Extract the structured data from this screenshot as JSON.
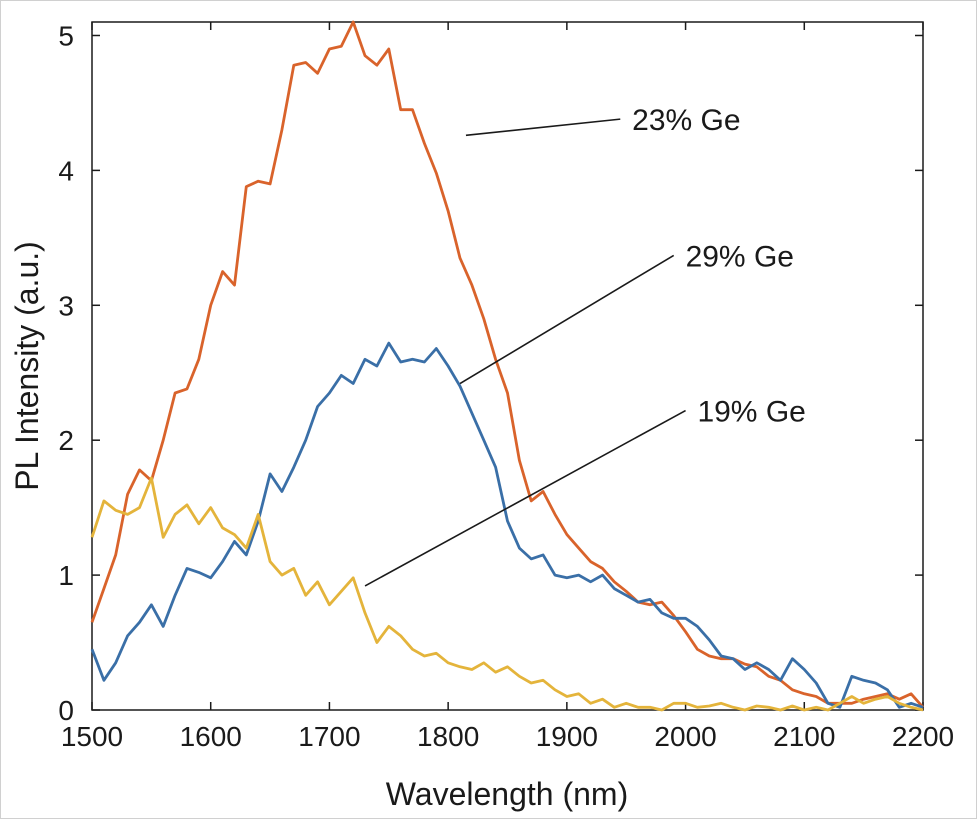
{
  "chart_data": {
    "type": "line",
    "title": "",
    "xlabel": "Wavelength (nm)",
    "ylabel": "PL Intensity (a.u.)",
    "xlim": [
      1500,
      2200
    ],
    "ylim": [
      0,
      5.1
    ],
    "xticks": [
      "1500",
      "1600",
      "1700",
      "1800",
      "1900",
      "2000",
      "2100",
      "2200"
    ],
    "yticks": [
      "0",
      "1",
      "2",
      "3",
      "4",
      "5"
    ],
    "grid": false,
    "legend": "none",
    "series": [
      {
        "name": "23% Ge",
        "color": "#d9632b",
        "x": [
          1500,
          1510,
          1520,
          1530,
          1540,
          1550,
          1560,
          1570,
          1580,
          1590,
          1600,
          1610,
          1620,
          1630,
          1640,
          1650,
          1660,
          1670,
          1680,
          1690,
          1700,
          1710,
          1720,
          1730,
          1740,
          1750,
          1760,
          1770,
          1780,
          1790,
          1800,
          1810,
          1820,
          1830,
          1840,
          1850,
          1860,
          1870,
          1880,
          1890,
          1900,
          1910,
          1920,
          1930,
          1940,
          1950,
          1960,
          1970,
          1980,
          1990,
          2000,
          2010,
          2020,
          2030,
          2040,
          2050,
          2060,
          2070,
          2080,
          2090,
          2100,
          2110,
          2120,
          2130,
          2140,
          2150,
          2160,
          2170,
          2180,
          2190,
          2200
        ],
        "y": [
          0.65,
          0.9,
          1.15,
          1.6,
          1.78,
          1.7,
          2.0,
          2.35,
          2.38,
          2.6,
          3.0,
          3.25,
          3.15,
          3.88,
          3.92,
          3.9,
          4.3,
          4.78,
          4.8,
          4.72,
          4.9,
          4.92,
          5.1,
          4.85,
          4.78,
          4.9,
          4.45,
          4.45,
          4.2,
          3.98,
          3.7,
          3.35,
          3.15,
          2.9,
          2.6,
          2.35,
          1.85,
          1.55,
          1.62,
          1.45,
          1.3,
          1.2,
          1.1,
          1.05,
          0.95,
          0.88,
          0.8,
          0.78,
          0.8,
          0.7,
          0.58,
          0.45,
          0.4,
          0.38,
          0.38,
          0.34,
          0.32,
          0.25,
          0.22,
          0.15,
          0.12,
          0.1,
          0.05,
          0.05,
          0.05,
          0.08,
          0.1,
          0.12,
          0.08,
          0.12,
          0.02
        ]
      },
      {
        "name": "29% Ge",
        "color": "#3a6fa7",
        "x": [
          1500,
          1510,
          1520,
          1530,
          1540,
          1550,
          1560,
          1570,
          1580,
          1590,
          1600,
          1610,
          1620,
          1630,
          1640,
          1650,
          1660,
          1670,
          1680,
          1690,
          1700,
          1710,
          1720,
          1730,
          1740,
          1750,
          1760,
          1770,
          1780,
          1790,
          1800,
          1810,
          1820,
          1830,
          1840,
          1850,
          1860,
          1870,
          1880,
          1890,
          1900,
          1910,
          1920,
          1930,
          1940,
          1950,
          1960,
          1970,
          1980,
          1990,
          2000,
          2010,
          2020,
          2030,
          2040,
          2050,
          2060,
          2070,
          2080,
          2090,
          2100,
          2110,
          2120,
          2130,
          2140,
          2150,
          2160,
          2170,
          2180,
          2190,
          2200
        ],
        "y": [
          0.45,
          0.22,
          0.35,
          0.55,
          0.65,
          0.78,
          0.62,
          0.85,
          1.05,
          1.02,
          0.98,
          1.1,
          1.25,
          1.15,
          1.4,
          1.75,
          1.62,
          1.8,
          2.0,
          2.25,
          2.35,
          2.48,
          2.42,
          2.6,
          2.55,
          2.72,
          2.58,
          2.6,
          2.58,
          2.68,
          2.55,
          2.4,
          2.2,
          2.0,
          1.8,
          1.4,
          1.2,
          1.12,
          1.15,
          1.0,
          0.98,
          1.0,
          0.95,
          1.0,
          0.9,
          0.85,
          0.8,
          0.82,
          0.72,
          0.68,
          0.68,
          0.62,
          0.52,
          0.4,
          0.38,
          0.3,
          0.35,
          0.3,
          0.22,
          0.38,
          0.3,
          0.2,
          0.05,
          0.02,
          0.25,
          0.22,
          0.2,
          0.15,
          0.02,
          0.05,
          0.02
        ]
      },
      {
        "name": "19% Ge",
        "color": "#e4b43b",
        "x": [
          1500,
          1510,
          1520,
          1530,
          1540,
          1550,
          1560,
          1570,
          1580,
          1590,
          1600,
          1610,
          1620,
          1630,
          1640,
          1650,
          1660,
          1670,
          1680,
          1690,
          1700,
          1710,
          1720,
          1730,
          1740,
          1750,
          1760,
          1770,
          1780,
          1790,
          1800,
          1810,
          1820,
          1830,
          1840,
          1850,
          1860,
          1870,
          1880,
          1890,
          1900,
          1910,
          1920,
          1930,
          1940,
          1950,
          1960,
          1970,
          1980,
          1990,
          2000,
          2010,
          2020,
          2030,
          2040,
          2050,
          2060,
          2070,
          2080,
          2090,
          2100,
          2110,
          2120,
          2130,
          2140,
          2150,
          2160,
          2170,
          2180,
          2190,
          2200
        ],
        "y": [
          1.28,
          1.55,
          1.48,
          1.45,
          1.5,
          1.72,
          1.28,
          1.45,
          1.52,
          1.38,
          1.5,
          1.35,
          1.3,
          1.2,
          1.45,
          1.1,
          1.0,
          1.05,
          0.85,
          0.95,
          0.78,
          0.88,
          0.98,
          0.72,
          0.5,
          0.62,
          0.55,
          0.45,
          0.4,
          0.42,
          0.35,
          0.32,
          0.3,
          0.35,
          0.28,
          0.32,
          0.25,
          0.2,
          0.22,
          0.15,
          0.1,
          0.12,
          0.05,
          0.08,
          0.02,
          0.05,
          0.02,
          0.02,
          0.0,
          0.05,
          0.05,
          0.02,
          0.03,
          0.05,
          0.02,
          0.0,
          0.03,
          0.02,
          0.0,
          0.03,
          0.0,
          0.02,
          0.0,
          0.05,
          0.1,
          0.05,
          0.08,
          0.1,
          0.05,
          0.02,
          0.0
        ]
      }
    ],
    "annotations": [
      {
        "text": "23% Ge",
        "label_x": 1955,
        "label_y": 4.38,
        "line_from": [
          1945,
          4.38
        ],
        "line_to": [
          1815,
          4.26
        ]
      },
      {
        "text": "29% Ge",
        "label_x": 2000,
        "label_y": 3.37,
        "line_from": [
          1990,
          3.37
        ],
        "line_to": [
          1810,
          2.42
        ]
      },
      {
        "text": "19% Ge",
        "label_x": 2010,
        "label_y": 2.22,
        "line_from": [
          2000,
          2.22
        ],
        "line_to": [
          1730,
          0.92
        ]
      }
    ]
  }
}
